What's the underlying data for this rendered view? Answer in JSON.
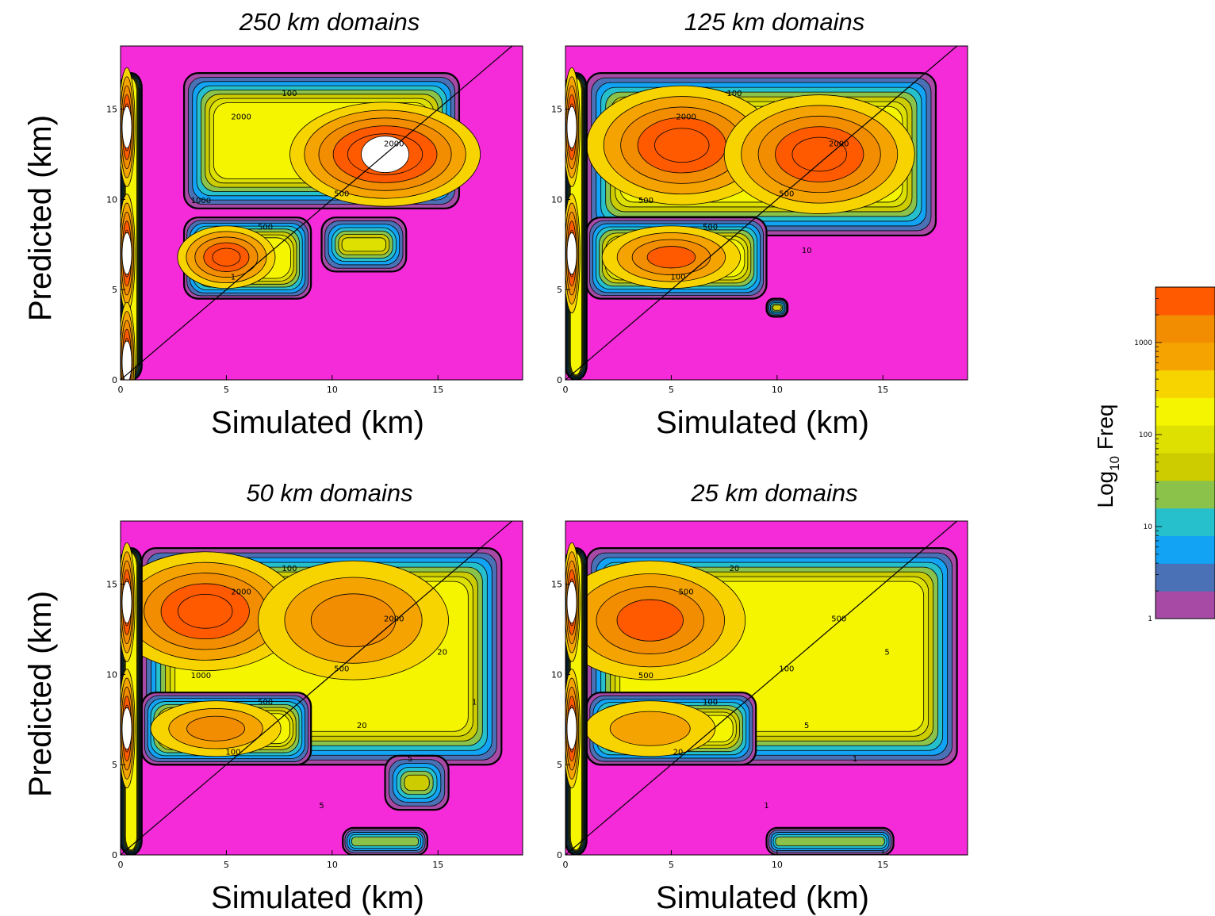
{
  "figure": {
    "row_ylabels": [
      "Predicted (km)",
      "Predicted (km)"
    ]
  },
  "chart_data": [
    {
      "type": "heatmap",
      "title": "250 km domains",
      "xlabel": "Simulated (km)",
      "xlim": [
        0,
        19
      ],
      "ylim": [
        0,
        18.5
      ],
      "xticks": [
        0,
        5,
        10,
        15
      ],
      "yticks": [
        0,
        5,
        10,
        15
      ],
      "background_color": "#f52ad8",
      "one_to_one_line": true,
      "regions": [
        {
          "label": "upper block",
          "x": [
            3,
            16
          ],
          "y": [
            9.5,
            17
          ],
          "peak_levels": [
            4,
            13,
            14
          ],
          "peaks": [
            [
              5,
              13.5
            ],
            [
              12.5,
              12.5
            ]
          ]
        },
        {
          "label": "lower block",
          "x": [
            3,
            9
          ],
          "y": [
            4.5,
            9
          ],
          "peak_levels": [
            12
          ],
          "peaks": [
            [
              5,
              6.8
            ]
          ]
        },
        {
          "label": "small patch",
          "x": [
            9.5,
            13.5
          ],
          "y": [
            6,
            9
          ],
          "peak_levels": [
            6
          ],
          "peaks": [
            [
              12,
              7.5
            ]
          ]
        },
        {
          "label": "left edge",
          "x": [
            0,
            1
          ],
          "y": [
            0,
            17
          ],
          "peak_levels": [
            13
          ],
          "peaks": [
            [
              0.3,
              14
            ],
            [
              0.3,
              7
            ],
            [
              0.3,
              1
            ]
          ]
        }
      ],
      "contour_labels": [
        "2000",
        "2000",
        "1000",
        "500",
        "500",
        "100",
        "1"
      ]
    },
    {
      "type": "heatmap",
      "title": "125 km domains",
      "xlabel": "Simulated (km)",
      "xlim": [
        0,
        19
      ],
      "ylim": [
        0,
        18.5
      ],
      "xticks": [
        0,
        5,
        10,
        15
      ],
      "yticks": [
        0,
        5,
        10,
        15
      ],
      "background_color": "#f52ad8",
      "one_to_one_line": true,
      "regions": [
        {
          "label": "upper block",
          "x": [
            1,
            17.5
          ],
          "y": [
            8,
            17
          ],
          "peak_levels": [
            12,
            12
          ],
          "peaks": [
            [
              5.5,
              13
            ],
            [
              12,
              12.5
            ]
          ]
        },
        {
          "label": "lower block",
          "x": [
            1,
            9.5
          ],
          "y": [
            4.5,
            9
          ],
          "peak_levels": [
            11
          ],
          "peaks": [
            [
              5,
              6.8
            ]
          ]
        },
        {
          "label": "isolated spot",
          "x": [
            9.5,
            10.5
          ],
          "y": [
            3.5,
            4.5
          ],
          "peak_levels": [
            5
          ],
          "peaks": [
            [
              10,
              4
            ]
          ]
        },
        {
          "label": "left edge",
          "x": [
            0,
            1
          ],
          "y": [
            0,
            17
          ],
          "peak_levels": [
            13
          ],
          "peaks": [
            [
              0.3,
              14
            ],
            [
              0.3,
              7
            ]
          ]
        }
      ],
      "contour_labels": [
        "2000",
        "2000",
        "500",
        "500",
        "500",
        "100",
        "100",
        "10"
      ]
    },
    {
      "type": "heatmap",
      "title": "50 km domains",
      "xlabel": "Simulated (km)",
      "xlim": [
        0,
        19
      ],
      "ylim": [
        0,
        18.5
      ],
      "xticks": [
        0,
        5,
        10,
        15
      ],
      "yticks": [
        0,
        5,
        10,
        15
      ],
      "background_color": "#f52ad8",
      "one_to_one_line": true,
      "regions": [
        {
          "label": "upper block",
          "x": [
            1,
            18
          ],
          "y": [
            5,
            17
          ],
          "peak_levels": [
            12,
            10
          ],
          "peaks": [
            [
              4,
              13.5
            ],
            [
              11,
              13
            ]
          ]
        },
        {
          "label": "lower block",
          "x": [
            1,
            9
          ],
          "y": [
            5,
            9
          ],
          "peak_levels": [
            10
          ],
          "peaks": [
            [
              4.5,
              7
            ]
          ]
        },
        {
          "label": "spot",
          "x": [
            12.5,
            15.5
          ],
          "y": [
            2.5,
            5.5
          ],
          "peak_levels": [
            5
          ],
          "peaks": [
            [
              14,
              4
            ]
          ]
        },
        {
          "label": "bottom patch",
          "x": [
            10.5,
            14.5
          ],
          "y": [
            0,
            1.5
          ],
          "peak_levels": [
            4
          ],
          "peaks": [
            [
              13.5,
              1
            ]
          ]
        },
        {
          "label": "left edge",
          "x": [
            0,
            1
          ],
          "y": [
            0,
            17
          ],
          "peak_levels": [
            13
          ],
          "peaks": [
            [
              0.3,
              14
            ],
            [
              0.3,
              7
            ]
          ]
        }
      ],
      "contour_labels": [
        "2000",
        "2000",
        "1000",
        "500",
        "500",
        "100",
        "100",
        "20",
        "20",
        "5",
        "5",
        "1"
      ]
    },
    {
      "type": "heatmap",
      "title": "25 km domains",
      "xlabel": "Simulated (km)",
      "xlim": [
        0,
        19
      ],
      "ylim": [
        0,
        18.5
      ],
      "xticks": [
        0,
        5,
        10,
        15
      ],
      "yticks": [
        0,
        5,
        10,
        15
      ],
      "background_color": "#f52ad8",
      "one_to_one_line": true,
      "regions": [
        {
          "label": "upper block",
          "x": [
            1,
            18.5
          ],
          "y": [
            5,
            17
          ],
          "peak_levels": [
            11
          ],
          "peaks": [
            [
              4,
              13
            ]
          ]
        },
        {
          "label": "lower block",
          "x": [
            1,
            9
          ],
          "y": [
            5,
            9
          ],
          "peak_levels": [
            9
          ],
          "peaks": [
            [
              4,
              7
            ]
          ]
        },
        {
          "label": "bottom patch",
          "x": [
            9.5,
            15.5
          ],
          "y": [
            0,
            1.5
          ],
          "peak_levels": [
            4
          ],
          "peaks": [
            [
              14,
              1
            ]
          ]
        },
        {
          "label": "left edge",
          "x": [
            0,
            1
          ],
          "y": [
            0,
            17
          ],
          "peak_levels": [
            13
          ],
          "peaks": [
            [
              0.3,
              14
            ],
            [
              0.3,
              7
            ]
          ]
        }
      ],
      "contour_labels": [
        "500",
        "500",
        "500",
        "100",
        "100",
        "20",
        "20",
        "5",
        "5",
        "1",
        "1"
      ]
    }
  ],
  "colorbar": {
    "title": "Log",
    "title_sub": "10",
    "title_suffix": " Freq",
    "scale": "log",
    "range": [
      1,
      4000
    ],
    "ticks": [
      {
        "value": 1,
        "label": "1"
      },
      {
        "value": 10,
        "label": "10"
      },
      {
        "value": 100,
        "label": "100"
      },
      {
        "value": 1000,
        "label": "1000"
      }
    ],
    "levels_colors": [
      "#a64aa6",
      "#4a70b5",
      "#12a3f5",
      "#26bfcc",
      "#8ac24a",
      "#cccc00",
      "#dde000",
      "#f5f500",
      "#f7d400",
      "#f5a300",
      "#f28c00",
      "#ff5a00"
    ]
  }
}
